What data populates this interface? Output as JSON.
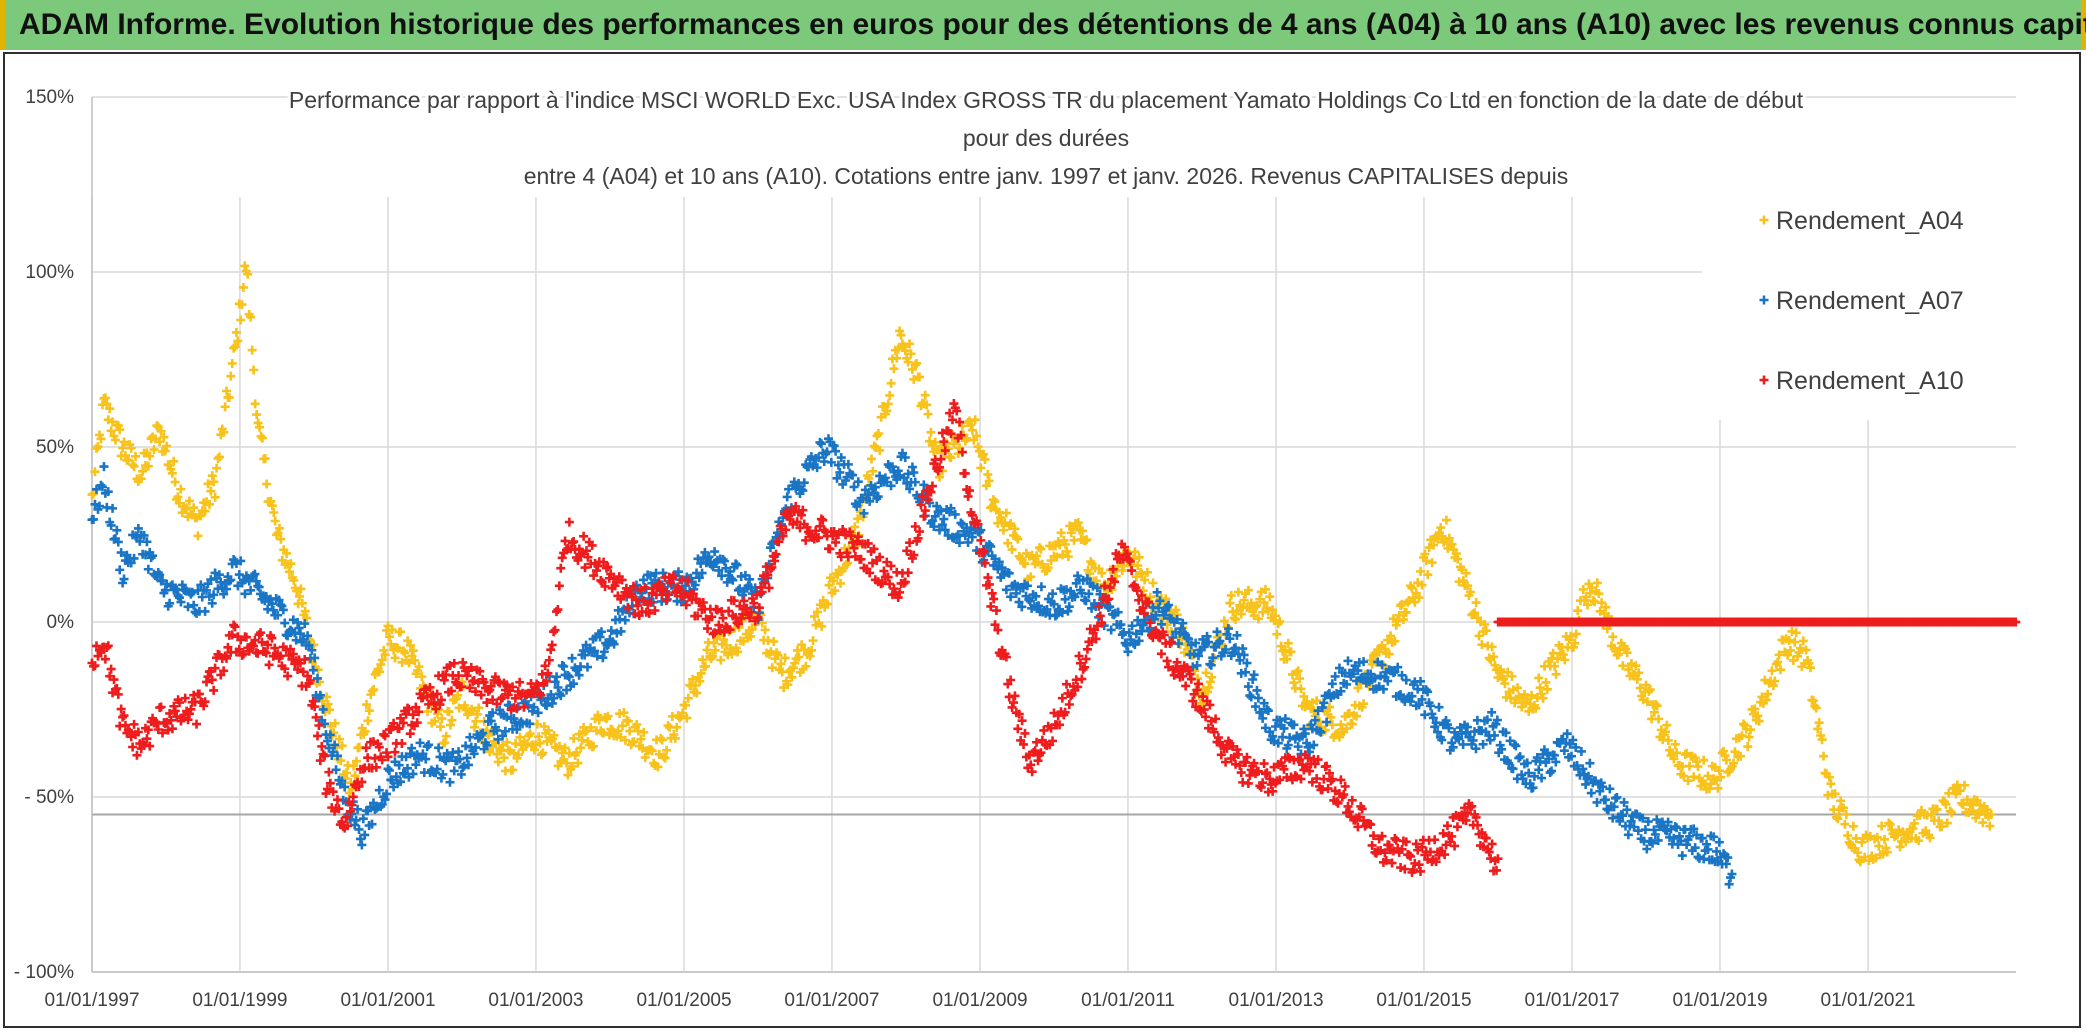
{
  "banner": {
    "title": "ADAM Informe. Evolution historique des performances en euros pour des détentions de 4 ans (A04) à 10 ans (A10) avec les revenus connus capitalisés"
  },
  "colors": {
    "banner_bg": "#7dc97b",
    "banner_edge": "#e0b400",
    "A04": "#f7c21b",
    "A07": "#1b75c5",
    "A10": "#ee1c1c"
  },
  "chart_data": {
    "type": "scatter",
    "title_lines": [
      "Performance par rapport à l'indice MSCI WORLD Exc. USA Index GROSS TR  du placement Yamato Holdings Co Ltd en fonction de la date de début",
      "pour des durées",
      "entre 4 (A04) et 10 ans (A10). Cotations entre janv. 1997 et janv. 2026. Revenus CAPITALISES depuis"
    ],
    "x_axis": {
      "type": "date",
      "range": [
        "1997-01-01",
        "2023-01-01"
      ],
      "tick_labels": [
        "01/01/1997",
        "01/01/1999",
        "01/01/2001",
        "01/01/2003",
        "01/01/2005",
        "01/01/2007",
        "01/01/2009",
        "01/01/2011",
        "01/01/2013",
        "01/01/2015",
        "01/01/2017",
        "01/01/2019",
        "01/01/2021"
      ]
    },
    "y_axis": {
      "range": [
        -100,
        150
      ],
      "unit": "%",
      "tick_labels": [
        "150%",
        "100%",
        "50%",
        "0%",
        "- 50%",
        "- 100%"
      ],
      "tick_values": [
        150,
        100,
        50,
        0,
        -50,
        -100
      ]
    },
    "grid": true,
    "reference_line": -55,
    "legend_position": "top-right",
    "series": [
      {
        "name": "Rendement_A04",
        "color": "#f7c21b",
        "points": [
          [
            "1997-01-01",
            35
          ],
          [
            "1997-03-01",
            62
          ],
          [
            "1997-06-01",
            50
          ],
          [
            "1997-09-01",
            42
          ],
          [
            "1997-12-01",
            55
          ],
          [
            "1998-03-01",
            38
          ],
          [
            "1998-06-01",
            28
          ],
          [
            "1998-09-01",
            40
          ],
          [
            "1998-12-01",
            75
          ],
          [
            "1999-02-01",
            102
          ],
          [
            "1999-04-01",
            55
          ],
          [
            "1999-07-01",
            25
          ],
          [
            "1999-10-01",
            12
          ],
          [
            "2000-01-01",
            -10
          ],
          [
            "2000-04-01",
            -30
          ],
          [
            "2000-07-01",
            -48
          ],
          [
            "2000-10-01",
            -22
          ],
          [
            "2001-01-01",
            -5
          ],
          [
            "2001-04-01",
            -8
          ],
          [
            "2001-07-01",
            -20
          ],
          [
            "2001-10-01",
            -32
          ],
          [
            "2002-01-01",
            -20
          ],
          [
            "2002-06-01",
            -35
          ],
          [
            "2002-09-01",
            -40
          ],
          [
            "2003-01-01",
            -32
          ],
          [
            "2003-06-01",
            -40
          ],
          [
            "2003-12-01",
            -28
          ],
          [
            "2004-04-01",
            -30
          ],
          [
            "2004-09-01",
            -38
          ],
          [
            "2005-01-01",
            -25
          ],
          [
            "2005-05-01",
            -10
          ],
          [
            "2005-09-01",
            -5
          ],
          [
            "2006-01-01",
            0
          ],
          [
            "2006-05-01",
            -15
          ],
          [
            "2006-09-01",
            -8
          ],
          [
            "2007-01-01",
            10
          ],
          [
            "2007-05-01",
            25
          ],
          [
            "2007-09-01",
            55
          ],
          [
            "2007-12-01",
            82
          ],
          [
            "2008-03-01",
            70
          ],
          [
            "2008-06-01",
            45
          ],
          [
            "2008-09-01",
            50
          ],
          [
            "2008-12-01",
            55
          ],
          [
            "2009-03-01",
            35
          ],
          [
            "2009-06-01",
            25
          ],
          [
            "2009-09-01",
            15
          ],
          [
            "2010-01-01",
            20
          ],
          [
            "2010-05-01",
            25
          ],
          [
            "2010-09-01",
            10
          ],
          [
            "2011-01-01",
            20
          ],
          [
            "2011-06-01",
            5
          ],
          [
            "2011-09-01",
            0
          ],
          [
            "2012-01-01",
            -20
          ],
          [
            "2012-06-01",
            5
          ],
          [
            "2012-12-01",
            5
          ],
          [
            "2013-06-01",
            -25
          ],
          [
            "2013-12-01",
            -30
          ],
          [
            "2014-06-01",
            -10
          ],
          [
            "2014-12-01",
            10
          ],
          [
            "2015-04-01",
            28
          ],
          [
            "2015-09-01",
            5
          ],
          [
            "2016-01-01",
            -15
          ],
          [
            "2016-06-01",
            -25
          ],
          [
            "2016-09-01",
            -15
          ],
          [
            "2017-01-01",
            -5
          ],
          [
            "2017-04-01",
            12
          ],
          [
            "2017-09-01",
            -10
          ],
          [
            "2018-01-01",
            -20
          ],
          [
            "2018-06-01",
            -40
          ],
          [
            "2018-12-01",
            -45
          ],
          [
            "2019-06-01",
            -30
          ],
          [
            "2019-12-01",
            -5
          ],
          [
            "2020-03-01",
            -10
          ],
          [
            "2020-07-01",
            -50
          ],
          [
            "2020-12-01",
            -65
          ],
          [
            "2021-06-01",
            -60
          ],
          [
            "2021-12-01",
            -57
          ],
          [
            "2022-04-01",
            -50
          ],
          [
            "2022-09-01",
            -55
          ]
        ]
      },
      {
        "name": "Rendement_A07",
        "color": "#1b75c5",
        "points": [
          [
            "1997-01-01",
            30
          ],
          [
            "1997-03-01",
            40
          ],
          [
            "1997-06-01",
            15
          ],
          [
            "1997-09-01",
            25
          ],
          [
            "1997-12-01",
            10
          ],
          [
            "1998-06-01",
            5
          ],
          [
            "1998-12-01",
            15
          ],
          [
            "1999-06-01",
            5
          ],
          [
            "1999-12-01",
            -5
          ],
          [
            "2000-03-01",
            -30
          ],
          [
            "2000-06-01",
            -50
          ],
          [
            "2000-09-01",
            -60
          ],
          [
            "2001-01-01",
            -45
          ],
          [
            "2001-06-01",
            -38
          ],
          [
            "2001-12-01",
            -42
          ],
          [
            "2002-06-01",
            -30
          ],
          [
            "2002-12-01",
            -25
          ],
          [
            "2003-06-01",
            -15
          ],
          [
            "2004-01-01",
            -5
          ],
          [
            "2004-06-01",
            10
          ],
          [
            "2005-01-01",
            10
          ],
          [
            "2005-06-01",
            20
          ],
          [
            "2006-01-01",
            5
          ],
          [
            "2006-06-01",
            35
          ],
          [
            "2006-12-01",
            50
          ],
          [
            "2007-06-01",
            35
          ],
          [
            "2007-12-01",
            45
          ],
          [
            "2008-06-01",
            30
          ],
          [
            "2008-12-01",
            25
          ],
          [
            "2009-06-01",
            10
          ],
          [
            "2010-01-01",
            5
          ],
          [
            "2010-06-01",
            10
          ],
          [
            "2011-01-01",
            -5
          ],
          [
            "2011-06-01",
            5
          ],
          [
            "2011-12-01",
            -10
          ],
          [
            "2012-06-01",
            -5
          ],
          [
            "2012-12-01",
            -30
          ],
          [
            "2013-06-01",
            -35
          ],
          [
            "2013-12-01",
            -15
          ],
          [
            "2014-06-01",
            -15
          ],
          [
            "2014-12-01",
            -20
          ],
          [
            "2015-06-01",
            -35
          ],
          [
            "2015-12-01",
            -30
          ],
          [
            "2016-06-01",
            -45
          ],
          [
            "2016-12-01",
            -35
          ],
          [
            "2017-06-01",
            -50
          ],
          [
            "2017-12-01",
            -60
          ],
          [
            "2018-06-01",
            -62
          ],
          [
            "2018-12-01",
            -65
          ],
          [
            "2019-03-01",
            -72
          ]
        ]
      },
      {
        "name": "Rendement_A10",
        "color": "#ee1c1c",
        "points": [
          [
            "1997-01-01",
            -10
          ],
          [
            "1997-03-01",
            -5
          ],
          [
            "1997-06-01",
            -30
          ],
          [
            "1997-09-01",
            -35
          ],
          [
            "1997-12-01",
            -28
          ],
          [
            "1998-06-01",
            -25
          ],
          [
            "1998-12-01",
            -5
          ],
          [
            "1999-06-01",
            -8
          ],
          [
            "1999-12-01",
            -15
          ],
          [
            "2000-03-01",
            -45
          ],
          [
            "2000-06-01",
            -58
          ],
          [
            "2000-09-01",
            -40
          ],
          [
            "2001-01-01",
            -35
          ],
          [
            "2001-06-01",
            -25
          ],
          [
            "2001-12-01",
            -15
          ],
          [
            "2002-06-01",
            -20
          ],
          [
            "2002-12-01",
            -22
          ],
          [
            "2003-03-01",
            -15
          ],
          [
            "2003-06-01",
            25
          ],
          [
            "2003-12-01",
            15
          ],
          [
            "2004-06-01",
            5
          ],
          [
            "2004-12-01",
            10
          ],
          [
            "2005-06-01",
            0
          ],
          [
            "2006-01-01",
            5
          ],
          [
            "2006-06-01",
            30
          ],
          [
            "2006-12-01",
            25
          ],
          [
            "2007-06-01",
            20
          ],
          [
            "2007-12-01",
            10
          ],
          [
            "2008-06-01",
            45
          ],
          [
            "2008-09-01",
            60
          ],
          [
            "2008-12-01",
            30
          ],
          [
            "2009-06-01",
            -20
          ],
          [
            "2009-09-01",
            -40
          ],
          [
            "2010-01-01",
            -30
          ],
          [
            "2010-06-01",
            -10
          ],
          [
            "2010-12-01",
            20
          ],
          [
            "2011-06-01",
            -5
          ],
          [
            "2011-12-01",
            -20
          ],
          [
            "2012-06-01",
            -40
          ],
          [
            "2012-12-01",
            -45
          ],
          [
            "2013-06-01",
            -40
          ],
          [
            "2013-12-01",
            -50
          ],
          [
            "2014-06-01",
            -65
          ],
          [
            "2014-12-01",
            -68
          ],
          [
            "2015-06-01",
            -60
          ],
          [
            "2015-09-01",
            -55
          ],
          [
            "2016-01-01",
            -70
          ],
          [
            "2016-01-02",
            0
          ],
          [
            "2022-12-31",
            0
          ]
        ]
      }
    ]
  }
}
